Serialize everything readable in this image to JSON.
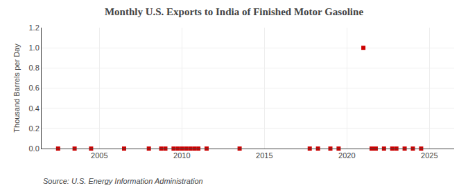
{
  "chart_data": {
    "type": "scatter",
    "title": "Monthly U.S. Exports to India of Finished Motor Gasoline",
    "ylabel": "Thousand Barrels per Day",
    "annotations": [
      "Source: U.S. Energy Information Administration"
    ],
    "x": [
      2002.5,
      2003.5,
      2004.5,
      2006.5,
      2008.0,
      2008.75,
      2009.0,
      2009.5,
      2009.75,
      2010.0,
      2010.25,
      2010.5,
      2010.75,
      2011.0,
      2011.5,
      2013.5,
      2017.75,
      2018.25,
      2019.0,
      2019.5,
      2021.0,
      2021.5,
      2021.75,
      2022.25,
      2022.75,
      2023.0,
      2023.5,
      2024.0,
      2024.5
    ],
    "values": [
      0.0,
      0.0,
      0.0,
      0.0,
      0.0,
      0.0,
      0.0,
      0.0,
      0.0,
      0.0,
      0.0,
      0.0,
      0.0,
      0.0,
      0.0,
      0.0,
      0.0,
      0.0,
      0.0,
      0.0,
      1.0,
      0.0,
      0.0,
      0.0,
      0.0,
      0.0,
      0.0,
      0.0,
      0.0
    ],
    "color": "#cc0000",
    "marker": "square",
    "xlim": [
      2001.5,
      2026.5
    ],
    "xticks": [
      2005,
      2010,
      2015,
      2020,
      2025
    ],
    "ylim": [
      0,
      1.2
    ],
    "yticks": [
      {
        "value": 0.0,
        "label": "0.0"
      },
      0.2,
      0.4,
      0.6,
      0.8,
      {
        "value": 1.0,
        "label": "1.0"
      },
      1.2
    ],
    "grid": true
  }
}
